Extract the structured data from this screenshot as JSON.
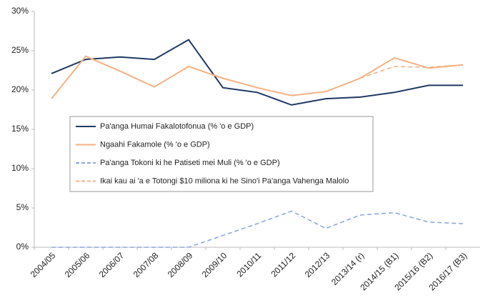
{
  "chart_data": {
    "type": "line",
    "categories": [
      "2004/05",
      "2005/06",
      "2006/07",
      "2007/08",
      "2008/09",
      "2009/10",
      "2010/11",
      "2011/12",
      "2012/13",
      "2013/14 (r)",
      "2014/15 (B1)",
      "2015/16 (B2)",
      "2016/17  (B3)"
    ],
    "series": [
      {
        "name": "Pa'anga Humai Fakalotofonua (% 'o e GDP)",
        "color": "#203864",
        "dash": false,
        "values": [
          22.1,
          23.9,
          24.2,
          23.9,
          26.4,
          20.3,
          19.7,
          18.1,
          18.9,
          19.1,
          19.7,
          20.6,
          20.6
        ]
      },
      {
        "name": "Ngaahi Fakamole (% 'o e GDP)",
        "color": "#f4b183",
        "dash": false,
        "values": [
          18.9,
          24.3,
          22.4,
          20.4,
          23.0,
          21.5,
          20.3,
          19.3,
          19.8,
          21.5,
          24.1,
          22.8,
          23.2
        ]
      },
      {
        "name": "Pa'anga Tokoni ki he Patiseti mei Muli (% 'o e GDP)",
        "color": "#8ea9db",
        "dash": true,
        "values": [
          0,
          0,
          0,
          0,
          0,
          1.5,
          3.0,
          4.6,
          2.4,
          4.1,
          4.4,
          3.2,
          3.0
        ]
      },
      {
        "name": "Ikai kau ai 'a e Totongi $10 miliona ki he Sino'i Pa'anga Vahenga Malolo",
        "color": "#f4b183",
        "dash": true,
        "values": [
          null,
          null,
          null,
          null,
          null,
          null,
          null,
          null,
          null,
          21.5,
          23.0,
          22.9,
          23.2
        ]
      }
    ],
    "ylim": [
      0,
      30
    ],
    "yticks": [
      {
        "value": 0,
        "label": "0%"
      },
      {
        "value": 5,
        "label": "5%"
      },
      {
        "value": 10,
        "label": "10%"
      },
      {
        "value": 15,
        "label": "15%"
      },
      {
        "value": 20,
        "label": "20%"
      },
      {
        "value": 25,
        "label": "25%"
      },
      {
        "value": 30,
        "label": "30%"
      }
    ],
    "grid": false
  }
}
